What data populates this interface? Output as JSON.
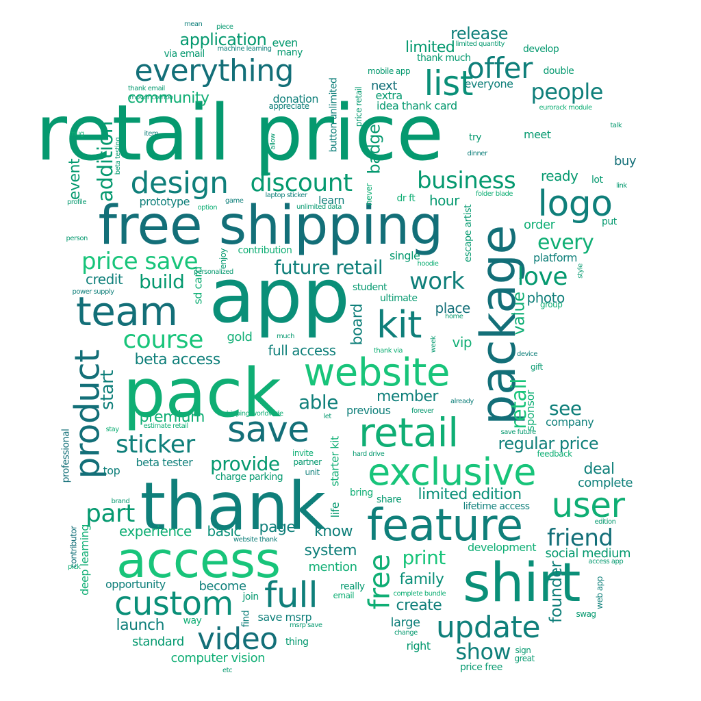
{
  "palette": [
    "#05996f",
    "#0a8f78",
    "#0f7f7a",
    "#0fae74",
    "#136f78",
    "#18c47a",
    "#0b6f72"
  ],
  "words": [
    {
      "text": "retail price"
    },
    {
      "text": "app"
    },
    {
      "text": "thank"
    },
    {
      "text": "pack"
    },
    {
      "text": "free shipping"
    },
    {
      "text": "shirt"
    },
    {
      "text": "access"
    },
    {
      "text": "package"
    },
    {
      "text": "feature"
    },
    {
      "text": "retail"
    },
    {
      "text": "website"
    },
    {
      "text": "exclusive"
    },
    {
      "text": "everything"
    },
    {
      "text": "team"
    },
    {
      "text": "save"
    },
    {
      "text": "kit"
    },
    {
      "text": "custom"
    },
    {
      "text": "product"
    },
    {
      "text": "logo"
    },
    {
      "text": "update"
    },
    {
      "text": "video"
    },
    {
      "text": "user"
    },
    {
      "text": "full"
    },
    {
      "text": "discount"
    },
    {
      "text": "design"
    },
    {
      "text": "list"
    },
    {
      "text": "offer"
    },
    {
      "text": "course"
    },
    {
      "text": "addition"
    },
    {
      "text": "business"
    },
    {
      "text": "work"
    },
    {
      "text": "free"
    },
    {
      "text": "future retail"
    },
    {
      "text": "price save"
    },
    {
      "text": "friend"
    },
    {
      "text": "people"
    },
    {
      "text": "part"
    },
    {
      "text": "sticker"
    },
    {
      "text": "love"
    },
    {
      "text": "application"
    },
    {
      "text": "show"
    },
    {
      "text": "provide"
    },
    {
      "text": "release"
    },
    {
      "text": "print"
    },
    {
      "text": "regular price"
    },
    {
      "text": "limited"
    },
    {
      "text": "every"
    },
    {
      "text": "build"
    },
    {
      "text": "community"
    },
    {
      "text": "start"
    },
    {
      "text": "able"
    },
    {
      "text": "founder"
    },
    {
      "text": "value"
    },
    {
      "text": "retail"
    },
    {
      "text": "event"
    },
    {
      "text": "see"
    },
    {
      "text": "beta access"
    },
    {
      "text": "premium"
    },
    {
      "text": "member"
    },
    {
      "text": "full access"
    },
    {
      "text": "deal"
    },
    {
      "text": "family"
    },
    {
      "text": "limited edition"
    },
    {
      "text": "launch"
    },
    {
      "text": "system"
    },
    {
      "text": "experience"
    },
    {
      "text": "badge"
    },
    {
      "text": "place"
    },
    {
      "text": "page"
    },
    {
      "text": "board"
    },
    {
      "text": "know"
    },
    {
      "text": "create"
    },
    {
      "text": "hour"
    },
    {
      "text": "basic"
    },
    {
      "text": "credit"
    },
    {
      "text": "next"
    },
    {
      "text": "ready"
    },
    {
      "text": "company"
    },
    {
      "text": "complete"
    },
    {
      "text": "standard"
    },
    {
      "text": "computer vision"
    },
    {
      "text": "beta tester"
    },
    {
      "text": "donation"
    },
    {
      "text": "prototype"
    },
    {
      "text": "become"
    },
    {
      "text": "opportunity"
    },
    {
      "text": "development"
    },
    {
      "text": "social medium"
    },
    {
      "text": "mention"
    },
    {
      "text": "previous"
    },
    {
      "text": "vip"
    },
    {
      "text": "photo"
    },
    {
      "text": "gold"
    },
    {
      "text": "order"
    },
    {
      "text": "buy"
    },
    {
      "text": "platform"
    },
    {
      "text": "large"
    },
    {
      "text": "right"
    },
    {
      "text": "save msrp"
    },
    {
      "text": "sponsor"
    },
    {
      "text": "single"
    },
    {
      "text": "top"
    },
    {
      "text": "learn"
    },
    {
      "text": "extra"
    },
    {
      "text": "idea thank card"
    },
    {
      "text": "everyone"
    },
    {
      "text": "thank much"
    },
    {
      "text": "develop"
    },
    {
      "text": "double"
    },
    {
      "text": "sd card"
    },
    {
      "text": "via email"
    },
    {
      "text": "even"
    },
    {
      "text": "many"
    },
    {
      "text": "meet"
    },
    {
      "text": "try"
    },
    {
      "text": "lot"
    },
    {
      "text": "put"
    },
    {
      "text": "starter kit"
    },
    {
      "text": "student"
    },
    {
      "text": "ultimate"
    },
    {
      "text": "life"
    },
    {
      "text": "deep learning"
    },
    {
      "text": "contributor"
    },
    {
      "text": "professional"
    },
    {
      "text": "really"
    },
    {
      "text": "email"
    },
    {
      "text": "join"
    },
    {
      "text": "way"
    },
    {
      "text": "find"
    },
    {
      "text": "thing"
    },
    {
      "text": "sign"
    },
    {
      "text": "great"
    },
    {
      "text": "price free"
    },
    {
      "text": "escape artist"
    },
    {
      "text": "dr ft"
    },
    {
      "text": "share"
    },
    {
      "text": "bring"
    },
    {
      "text": "lifetime access"
    },
    {
      "text": "charge parking"
    },
    {
      "text": "invite"
    },
    {
      "text": "partner"
    },
    {
      "text": "unit"
    },
    {
      "text": "button unlimited"
    },
    {
      "text": "price retail"
    },
    {
      "text": "never"
    },
    {
      "text": "enjoy"
    },
    {
      "text": "contribution"
    },
    {
      "text": "appreciate"
    },
    {
      "text": "mobile app"
    },
    {
      "text": "limited quantity"
    },
    {
      "text": "eurorack module"
    },
    {
      "text": "talk"
    },
    {
      "text": "dinner"
    },
    {
      "text": "link"
    },
    {
      "text": "folder blade"
    },
    {
      "text": "style"
    },
    {
      "text": "group"
    },
    {
      "text": "device"
    },
    {
      "text": "gift"
    },
    {
      "text": "save future"
    },
    {
      "text": "feedback"
    },
    {
      "text": "edition"
    },
    {
      "text": "access app"
    },
    {
      "text": "web app"
    },
    {
      "text": "swag"
    },
    {
      "text": "complete bundle"
    },
    {
      "text": "change"
    },
    {
      "text": "msrp save"
    },
    {
      "text": "etc"
    },
    {
      "text": "website thank"
    },
    {
      "text": "pick"
    },
    {
      "text": "brand"
    },
    {
      "text": "stay"
    },
    {
      "text": "estimate retail"
    },
    {
      "text": "shipping worldwide"
    },
    {
      "text": "let"
    },
    {
      "text": "forever"
    },
    {
      "text": "already"
    },
    {
      "text": "hard drive"
    },
    {
      "text": "thank via"
    },
    {
      "text": "week"
    },
    {
      "text": "much"
    },
    {
      "text": "power supply"
    },
    {
      "text": "person"
    },
    {
      "text": "personalized"
    },
    {
      "text": "hoodie"
    },
    {
      "text": "home"
    },
    {
      "text": "option"
    },
    {
      "text": "game"
    },
    {
      "text": "laptop sticker"
    },
    {
      "text": "unlimited data"
    },
    {
      "text": "profile"
    },
    {
      "text": "beta testing"
    },
    {
      "text": "mug"
    },
    {
      "text": "item"
    },
    {
      "text": "allow"
    },
    {
      "text": "thank email"
    },
    {
      "text": "mover combo"
    },
    {
      "text": "mean"
    },
    {
      "text": "piece"
    },
    {
      "text": "machine learning"
    }
  ]
}
